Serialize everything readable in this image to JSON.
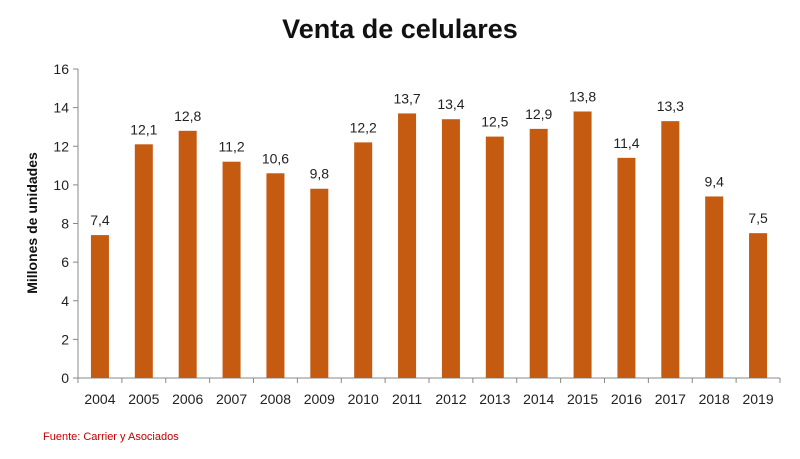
{
  "chart_data": {
    "type": "bar",
    "title": "Venta de celulares",
    "xlabel": "",
    "ylabel": "Millones de unidades",
    "categories": [
      "2004",
      "2005",
      "2006",
      "2007",
      "2008",
      "2009",
      "2010",
      "2011",
      "2012",
      "2013",
      "2014",
      "2015",
      "2016",
      "2017",
      "2018",
      "2019"
    ],
    "values": [
      7.4,
      12.1,
      12.8,
      11.2,
      10.6,
      9.8,
      12.2,
      13.7,
      13.4,
      12.5,
      12.9,
      13.8,
      11.4,
      13.3,
      9.4,
      7.5
    ],
    "data_labels": [
      "7,4",
      "12,1",
      "12,8",
      "11,2",
      "10,6",
      "9,8",
      "12,2",
      "13,7",
      "13,4",
      "12,5",
      "12,9",
      "13,8",
      "11,4",
      "13,3",
      "9,4",
      "7,5"
    ],
    "ylim": [
      0,
      16
    ],
    "yticks": [
      0,
      2,
      4,
      6,
      8,
      10,
      12,
      14,
      16
    ],
    "grid": false,
    "bar_color": "#c55a11"
  },
  "source": "Fuente: Carrier y Asociados"
}
